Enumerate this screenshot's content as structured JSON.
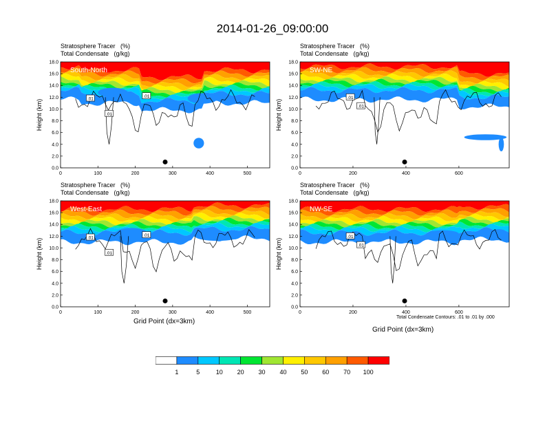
{
  "figure": {
    "title": "2014-01-26_09:00:00",
    "panel_title_line1": "Stratosphere Tracer   (%)",
    "panel_title_line2": "Total Condensate   (g/kg)",
    "ylabel": "Height (km)",
    "xlabel": "Grid Point (dx=3km)",
    "contour_note": "Total Condensate Contours: .01 to .01 by .000",
    "contour_label": ".01"
  },
  "colorbar": {
    "colors": [
      "#ffffff",
      "#1e8cff",
      "#00c8ff",
      "#00e6b4",
      "#00e632",
      "#a0e632",
      "#fff000",
      "#ffc800",
      "#ffa000",
      "#ff5a00",
      "#ff0000"
    ],
    "labels": [
      "1",
      "5",
      "10",
      "20",
      "30",
      "40",
      "50",
      "60",
      "70",
      "100"
    ]
  },
  "chart_data": [
    {
      "type": "heatmap",
      "panel": "South-North",
      "xlim": [
        0,
        560
      ],
      "ylim": [
        0,
        18
      ],
      "xticks": [
        "0",
        "100",
        "200",
        "300",
        "400",
        "500"
      ],
      "yticks": [
        "0.0",
        "2.0",
        "4.0",
        "6.0",
        "8.0",
        "10.0",
        "12.0",
        "14.0",
        "16.0",
        "18.0"
      ],
      "marker_x": 280
    },
    {
      "type": "heatmap",
      "panel": "SW-NE",
      "xlim": [
        0,
        790
      ],
      "ylim": [
        0,
        18
      ],
      "xticks": [
        "0",
        "200",
        "400",
        "600"
      ],
      "yticks": [
        "0.0",
        "2.0",
        "4.0",
        "6.0",
        "8.0",
        "10.0",
        "12.0",
        "14.0",
        "16.0",
        "18.0"
      ],
      "marker_x": 395
    },
    {
      "type": "heatmap",
      "panel": "West-East",
      "xlim": [
        0,
        560
      ],
      "ylim": [
        0,
        18
      ],
      "xticks": [
        "0",
        "100",
        "200",
        "300",
        "400",
        "500"
      ],
      "yticks": [
        "0.0",
        "2.0",
        "4.0",
        "6.0",
        "8.0",
        "10.0",
        "12.0",
        "14.0",
        "16.0",
        "18.0"
      ],
      "marker_x": 280
    },
    {
      "type": "heatmap",
      "panel": "NW-SE",
      "xlim": [
        0,
        790
      ],
      "ylim": [
        0,
        18
      ],
      "xticks": [
        "0",
        "200",
        "400",
        "600"
      ],
      "yticks": [
        "0.0",
        "2.0",
        "4.0",
        "6.0",
        "8.0",
        "10.0",
        "12.0",
        "14.0",
        "16.0",
        "18.0"
      ],
      "marker_x": 395
    }
  ]
}
